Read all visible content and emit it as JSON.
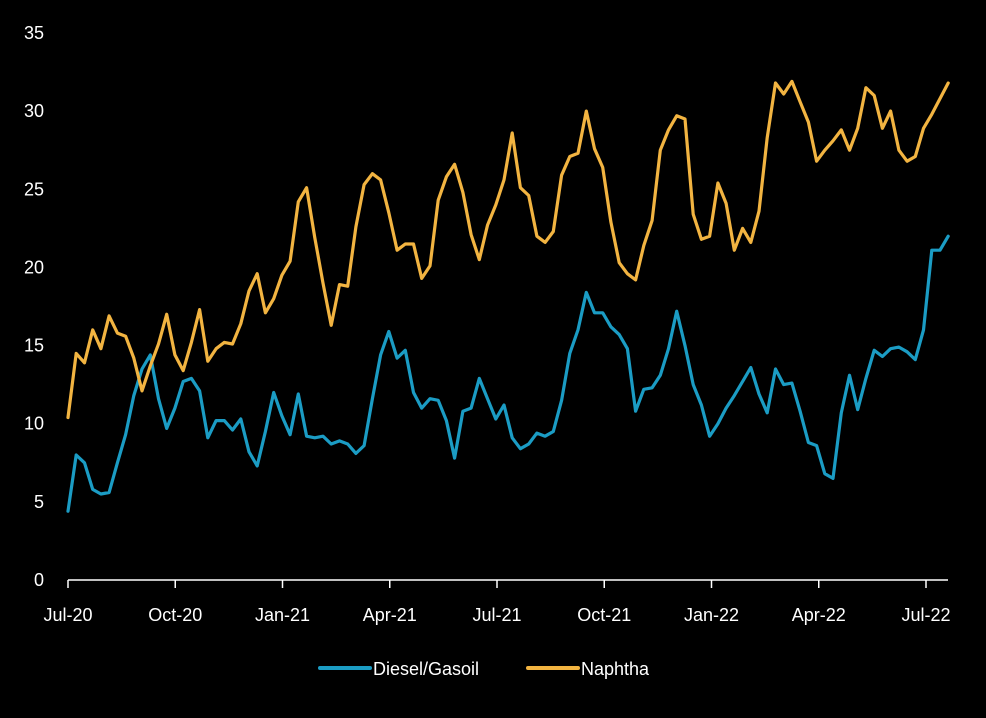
{
  "chart_data": {
    "type": "line",
    "title": "",
    "xlabel": "",
    "ylabel": "",
    "ylim": [
      0,
      35
    ],
    "yticks": [
      0,
      5,
      10,
      15,
      20,
      25,
      30,
      35
    ],
    "xticks": [
      "Jul-20",
      "Oct-20",
      "Jan-21",
      "Apr-21",
      "Jul-21",
      "Oct-21",
      "Jan-22",
      "Apr-22",
      "Jul-22"
    ],
    "x_unit": "weeks, Jul-20 to Jul-22",
    "grid": false,
    "legend_position": "bottom-center",
    "series": [
      {
        "name": "Diesel/Gasoil",
        "color": "#1b9cc4",
        "values": [
          4.4,
          8.0,
          7.5,
          5.8,
          5.5,
          5.6,
          7.5,
          9.3,
          11.8,
          13.5,
          14.4,
          11.6,
          9.7,
          11.0,
          12.7,
          12.9,
          12.1,
          9.1,
          10.2,
          10.2,
          9.6,
          10.3,
          8.2,
          7.3,
          9.5,
          12.0,
          10.5,
          9.3,
          11.9,
          9.2,
          9.1,
          9.2,
          8.7,
          8.9,
          8.7,
          8.1,
          8.6,
          11.6,
          14.4,
          15.9,
          14.2,
          14.7,
          12.0,
          11.0,
          11.6,
          11.5,
          10.2,
          7.8,
          10.8,
          11.0,
          12.9,
          11.6,
          10.3,
          11.2,
          9.1,
          8.4,
          8.7,
          9.4,
          9.2,
          9.5,
          11.5,
          14.5,
          16.0,
          18.4,
          17.1,
          17.1,
          16.2,
          15.7,
          14.8,
          10.8,
          12.2,
          12.3,
          13.1,
          14.8,
          17.2,
          15.0,
          12.5,
          11.2,
          9.2,
          10.0,
          11.0,
          11.8,
          12.7,
          13.6,
          11.9,
          10.7,
          13.5,
          12.5,
          12.6,
          10.8,
          8.8,
          8.6,
          6.8,
          6.5,
          10.7,
          13.1,
          10.9,
          12.9,
          14.7,
          14.3,
          14.8,
          14.9,
          14.6,
          14.1,
          16.0,
          21.1,
          21.1,
          22.0
        ]
      },
      {
        "name": "Naphtha",
        "color": "#f2b441",
        "values": [
          10.4,
          14.5,
          13.9,
          16.0,
          14.8,
          16.9,
          15.8,
          15.6,
          14.2,
          12.1,
          13.7,
          15.1,
          17.0,
          14.4,
          13.4,
          15.2,
          17.3,
          14.0,
          14.8,
          15.2,
          15.1,
          16.4,
          18.5,
          19.6,
          17.1,
          18.0,
          19.5,
          20.4,
          24.2,
          25.1,
          21.9,
          19.0,
          16.3,
          18.9,
          18.8,
          22.6,
          25.3,
          26.0,
          25.6,
          23.5,
          21.1,
          21.5,
          21.5,
          19.3,
          20.1,
          24.3,
          25.8,
          26.6,
          24.8,
          22.1,
          20.5,
          22.7,
          24.0,
          25.6,
          28.6,
          25.1,
          24.6,
          22.0,
          21.6,
          22.3,
          25.9,
          27.1,
          27.3,
          30.0,
          27.6,
          26.4,
          22.9,
          20.3,
          19.6,
          19.2,
          21.4,
          23.0,
          27.5,
          28.8,
          29.7,
          29.5,
          23.4,
          21.8,
          22.0,
          25.4,
          24.1,
          21.1,
          22.5,
          21.6,
          23.6,
          28.3,
          31.8,
          31.1,
          31.9,
          30.6,
          29.3,
          26.8,
          27.5,
          28.1,
          28.8,
          27.5,
          28.9,
          31.5,
          31.0,
          28.9,
          30.0,
          27.5,
          26.8,
          27.1,
          28.9,
          29.8,
          30.8,
          31.8
        ]
      }
    ]
  }
}
